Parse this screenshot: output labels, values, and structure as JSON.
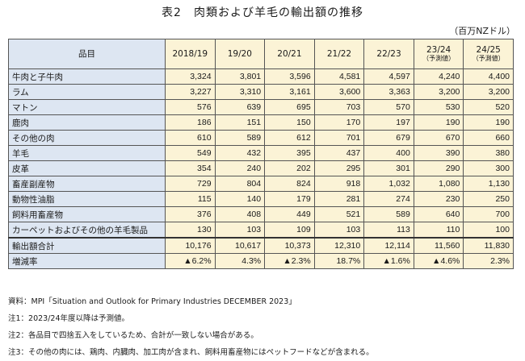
{
  "title": "表2　肉類および羊毛の輸出額の推移",
  "unit": "（百万NZドル）",
  "table": {
    "item_header": "品目",
    "columns": [
      {
        "label": "2018/19",
        "sub": ""
      },
      {
        "label": "19/20",
        "sub": ""
      },
      {
        "label": "20/21",
        "sub": ""
      },
      {
        "label": "21/22",
        "sub": ""
      },
      {
        "label": "22/23",
        "sub": ""
      },
      {
        "label": "23/24",
        "sub": "（予測値）"
      },
      {
        "label": "24/25",
        "sub": "（予測値）"
      }
    ],
    "rows": [
      {
        "label": "牛肉と子牛肉",
        "values": [
          "3,324",
          "3,801",
          "3,596",
          "4,581",
          "4,597",
          "4,240",
          "4,400"
        ]
      },
      {
        "label": "ラム",
        "values": [
          "3,227",
          "3,310",
          "3,161",
          "3,600",
          "3,363",
          "3,200",
          "3,200"
        ]
      },
      {
        "label": "マトン",
        "values": [
          "576",
          "639",
          "695",
          "703",
          "570",
          "530",
          "520"
        ]
      },
      {
        "label": "鹿肉",
        "values": [
          "186",
          "151",
          "150",
          "170",
          "197",
          "190",
          "190"
        ]
      },
      {
        "label": "その他の肉",
        "values": [
          "610",
          "589",
          "612",
          "701",
          "679",
          "670",
          "660"
        ]
      },
      {
        "label": "羊毛",
        "values": [
          "549",
          "432",
          "395",
          "437",
          "400",
          "390",
          "380"
        ]
      },
      {
        "label": "皮革",
        "values": [
          "354",
          "240",
          "202",
          "295",
          "301",
          "290",
          "300"
        ]
      },
      {
        "label": "畜産副産物",
        "values": [
          "729",
          "804",
          "824",
          "918",
          "1,032",
          "1,080",
          "1,130"
        ]
      },
      {
        "label": "動物性油脂",
        "values": [
          "115",
          "140",
          "179",
          "281",
          "274",
          "230",
          "250"
        ]
      },
      {
        "label": "飼料用畜産物",
        "values": [
          "376",
          "408",
          "449",
          "521",
          "589",
          "640",
          "700"
        ]
      },
      {
        "label": "カーペットおよびその他の羊毛製品",
        "values": [
          "130",
          "103",
          "109",
          "103",
          "113",
          "110",
          "100"
        ]
      }
    ],
    "total_rows": [
      {
        "label": "輸出額合計",
        "values": [
          "10,176",
          "10,617",
          "10,373",
          "12,310",
          "12,114",
          "11,560",
          "11,830"
        ]
      },
      {
        "label": "増減率",
        "values": [
          "▲6.2%",
          "4.3%",
          "▲2.3%",
          "18.7%",
          "▲1.6%",
          "▲4.6%",
          "2.3%"
        ]
      }
    ]
  },
  "notes": [
    "資料：MPI「Situation and Outlook for Primary Industries DECEMBER 2023」",
    "注1：2023/24年度以降は予測値。",
    "注2：各品目で四捨五入をしているため、合計が一致しない場合がある。",
    "注3：その他の肉には、鶏肉、内臓肉、加工肉が含まれ、飼料用畜産物にはペットフードなどが含まれる。"
  ]
}
